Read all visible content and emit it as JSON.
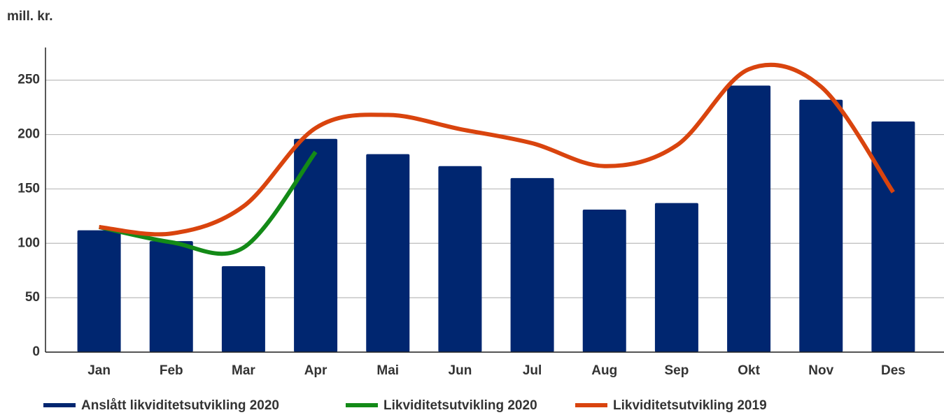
{
  "chart_data": {
    "type": "bar-line",
    "y_label": "mill. kr.",
    "categories": [
      "Jan",
      "Feb",
      "Mar",
      "Apr",
      "Mai",
      "Jun",
      "Jul",
      "Aug",
      "Sep",
      "Okt",
      "Nov",
      "Des"
    ],
    "series": [
      {
        "name": "Anslått likviditetsutvikling 2020",
        "kind": "bar",
        "color": "#002670",
        "values": [
          112,
          102,
          79,
          196,
          182,
          171,
          160,
          131,
          137,
          245,
          232,
          212
        ]
      },
      {
        "name": "Likviditetsutvikling 2020",
        "kind": "line",
        "color": "#138a17",
        "values": [
          115,
          101,
          96,
          184,
          null,
          null,
          null,
          null,
          null,
          null,
          null,
          null
        ]
      },
      {
        "name": "Likviditetsutvikling 2019",
        "kind": "line",
        "color": "#d9440e",
        "values": [
          115,
          109,
          134,
          206,
          218,
          205,
          192,
          171,
          190,
          260,
          244,
          147
        ]
      }
    ],
    "ylim": [
      0,
      280
    ],
    "yticks": [
      0,
      50,
      100,
      150,
      200,
      250
    ],
    "grid": true,
    "legend": "bottom"
  }
}
